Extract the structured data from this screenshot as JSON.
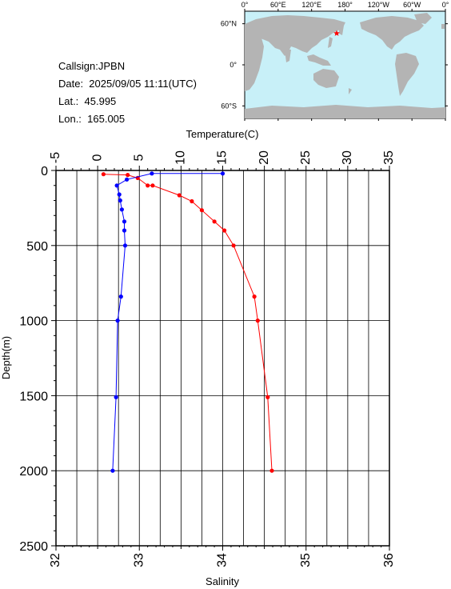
{
  "info": {
    "callsign": "Callsign:JPBN",
    "date": "Date:  2025/09/05 11:11(UTC)",
    "lat": "Lat.:  45.995",
    "lon": "Lon.:  165.005"
  },
  "map": {
    "top_labels": [
      "0°",
      "60°E",
      "120°E",
      "180°",
      "120°W",
      "60°W",
      "0°"
    ],
    "left_labels": [
      "60°N",
      "0°",
      "60°S"
    ],
    "marker": {
      "lat": 45.995,
      "lon": 165.005,
      "color": "#ff0000"
    },
    "ocean_color": "#c8f0f8",
    "land_color": "#b4b4b4"
  },
  "chart_data": {
    "type": "line",
    "ylabel": "Depth(m)",
    "ylim": [
      2500,
      0
    ],
    "yticks": [
      0,
      500,
      1000,
      1500,
      2000,
      2500
    ],
    "grid": true,
    "top_axis": {
      "label": "Temperature(C)",
      "range": [
        -5,
        35
      ],
      "ticks": [
        -5,
        0,
        5,
        10,
        15,
        20,
        25,
        30,
        35
      ]
    },
    "bottom_axis": {
      "label": "Salinity",
      "range": [
        32,
        36
      ],
      "ticks": [
        32,
        33,
        34,
        35,
        36
      ]
    },
    "series": [
      {
        "axis": "top",
        "color": "#ff0000",
        "depth": [
          25,
          30,
          50,
          100,
          100,
          165,
          205,
          265,
          340,
          400,
          500,
          840,
          1000,
          1510,
          2000
        ],
        "values": [
          0.7,
          3.6,
          4.8,
          6.0,
          6.6,
          9.8,
          11.3,
          12.5,
          14.0,
          15.2,
          16.3,
          18.8,
          19.2,
          20.4,
          20.9
        ]
      },
      {
        "axis": "bottom",
        "color": "#0000ff",
        "depth": [
          20,
          20,
          60,
          100,
          160,
          200,
          260,
          340,
          400,
          500,
          840,
          1000,
          1510,
          2000
        ],
        "values": [
          34.0,
          33.15,
          32.85,
          32.73,
          32.76,
          32.77,
          32.79,
          32.82,
          32.82,
          32.83,
          32.78,
          32.74,
          32.72,
          32.68
        ]
      }
    ]
  }
}
